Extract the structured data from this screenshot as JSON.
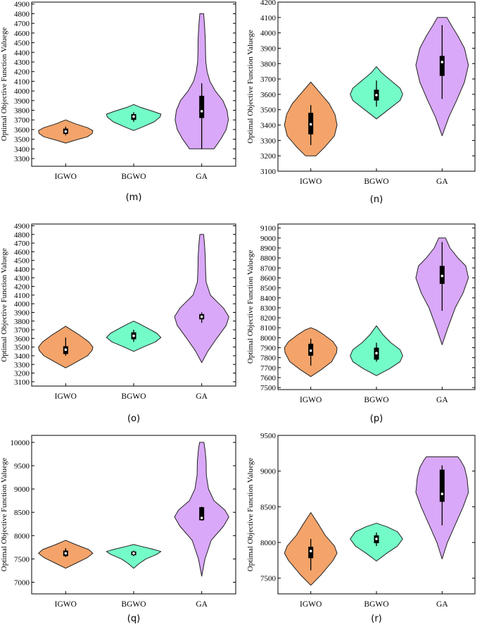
{
  "chart_data": [
    {
      "type": "violin",
      "panel": "(m)",
      "ylabel": "Optimal Objective Function Valuege",
      "categories": [
        "IGWO",
        "BGWO",
        "GA"
      ],
      "ylim": [
        3220,
        4920
      ],
      "yticks": [
        3300,
        3400,
        3500,
        3600,
        3700,
        3800,
        3900,
        4000,
        4100,
        4200,
        4300,
        4400,
        4500,
        4600,
        4700,
        4800,
        4900
      ],
      "violins": [
        {
          "name": "IGWO",
          "color": "#f4a46a",
          "profile": [
            [
              3460,
              0
            ],
            [
              3490,
              0.35
            ],
            [
              3525,
              0.8
            ],
            [
              3560,
              0.98
            ],
            [
              3590,
              1.0
            ],
            [
              3620,
              0.8
            ],
            [
              3660,
              0.35
            ],
            [
              3700,
              0
            ]
          ],
          "box": {
            "q1": 3555,
            "q3": 3610,
            "median": 3580,
            "wlo": 3540,
            "whi": 3630
          }
        },
        {
          "name": "BGWO",
          "color": "#74fcc8",
          "profile": [
            [
              3590,
              0
            ],
            [
              3630,
              0.35
            ],
            [
              3680,
              0.75
            ],
            [
              3730,
              0.97
            ],
            [
              3760,
              1.0
            ],
            [
              3790,
              0.7
            ],
            [
              3830,
              0.25
            ],
            [
              3860,
              0
            ]
          ],
          "box": {
            "q1": 3700,
            "q3": 3760,
            "median": 3735,
            "wlo": 3680,
            "whi": 3780
          }
        },
        {
          "name": "GA",
          "color": "#d9a8f8",
          "profile": [
            [
              3400,
              0.45
            ],
            [
              3500,
              0.7
            ],
            [
              3600,
              0.9
            ],
            [
              3700,
              0.98
            ],
            [
              3800,
              0.93
            ],
            [
              3900,
              0.78
            ],
            [
              4000,
              0.5
            ],
            [
              4100,
              0.3
            ],
            [
              4200,
              0.2
            ],
            [
              4300,
              0.15
            ],
            [
              4400,
              0.14
            ],
            [
              4550,
              0.13
            ],
            [
              4700,
              0.1
            ],
            [
              4800,
              0.07
            ]
          ],
          "box": {
            "q1": 3720,
            "q3": 3950,
            "median": 3790,
            "wlo": 3400,
            "whi": 4080
          }
        }
      ]
    },
    {
      "type": "violin",
      "panel": "(n)",
      "ylabel": "Optimal Objective Function Valuege",
      "categories": [
        "IGWO",
        "BGWO",
        "GA"
      ],
      "ylim": [
        3100,
        4200
      ],
      "yticks": [
        3100,
        3200,
        3300,
        3400,
        3500,
        3600,
        3700,
        3800,
        3900,
        4000,
        4100,
        4200
      ],
      "violins": [
        {
          "name": "IGWO",
          "color": "#f4a46a",
          "profile": [
            [
              3200,
              0.2
            ],
            [
              3260,
              0.55
            ],
            [
              3330,
              0.9
            ],
            [
              3400,
              1.0
            ],
            [
              3470,
              0.92
            ],
            [
              3540,
              0.7
            ],
            [
              3600,
              0.4
            ],
            [
              3650,
              0.15
            ],
            [
              3680,
              0
            ]
          ],
          "box": {
            "q1": 3340,
            "q3": 3480,
            "median": 3405,
            "wlo": 3270,
            "whi": 3530
          }
        },
        {
          "name": "BGWO",
          "color": "#74fcc8",
          "profile": [
            [
              3440,
              0
            ],
            [
              3500,
              0.45
            ],
            [
              3560,
              0.9
            ],
            [
              3600,
              1.0
            ],
            [
              3640,
              0.9
            ],
            [
              3690,
              0.55
            ],
            [
              3740,
              0.2
            ],
            [
              3780,
              0
            ]
          ],
          "box": {
            "q1": 3560,
            "q3": 3630,
            "median": 3595,
            "wlo": 3520,
            "whi": 3690
          }
        },
        {
          "name": "GA",
          "color": "#d9a8f8",
          "profile": [
            [
              3330,
              0
            ],
            [
              3450,
              0.25
            ],
            [
              3560,
              0.55
            ],
            [
              3680,
              0.85
            ],
            [
              3790,
              1.0
            ],
            [
              3900,
              0.85
            ],
            [
              3980,
              0.6
            ],
            [
              4050,
              0.35
            ],
            [
              4100,
              0.18
            ]
          ],
          "box": {
            "q1": 3720,
            "q3": 3850,
            "median": 3810,
            "wlo": 3570,
            "whi": 4050
          }
        }
      ]
    },
    {
      "type": "violin",
      "panel": "(o)",
      "ylabel": "Optimal Objective Function Valuege",
      "categories": [
        "IGWO",
        "BGWO",
        "GA"
      ],
      "ylim": [
        3050,
        4920
      ],
      "yticks": [
        3100,
        3200,
        3300,
        3400,
        3500,
        3600,
        3700,
        3800,
        3900,
        4000,
        4100,
        4200,
        4300,
        4400,
        4500,
        4600,
        4700,
        4800,
        4900
      ],
      "violins": [
        {
          "name": "IGWO",
          "color": "#f4a46a",
          "profile": [
            [
              3260,
              0
            ],
            [
              3320,
              0.35
            ],
            [
              3400,
              0.8
            ],
            [
              3460,
              0.97
            ],
            [
              3500,
              1.0
            ],
            [
              3560,
              0.85
            ],
            [
              3640,
              0.5
            ],
            [
              3700,
              0.2
            ],
            [
              3740,
              0
            ]
          ],
          "box": {
            "q1": 3420,
            "q3": 3510,
            "median": 3470,
            "wlo": 3400,
            "whi": 3610
          }
        },
        {
          "name": "BGWO",
          "color": "#74fcc8",
          "profile": [
            [
              3450,
              0
            ],
            [
              3500,
              0.35
            ],
            [
              3560,
              0.8
            ],
            [
              3610,
              1.0
            ],
            [
              3660,
              0.85
            ],
            [
              3720,
              0.5
            ],
            [
              3770,
              0.2
            ],
            [
              3800,
              0
            ]
          ],
          "box": {
            "q1": 3590,
            "q3": 3670,
            "median": 3630,
            "wlo": 3560,
            "whi": 3700
          }
        },
        {
          "name": "GA",
          "color": "#d9a8f8",
          "profile": [
            [
              3320,
              0
            ],
            [
              3450,
              0.22
            ],
            [
              3600,
              0.55
            ],
            [
              3750,
              0.9
            ],
            [
              3850,
              1.0
            ],
            [
              3950,
              0.8
            ],
            [
              4100,
              0.32
            ],
            [
              4250,
              0.16
            ],
            [
              4400,
              0.14
            ],
            [
              4550,
              0.13
            ],
            [
              4700,
              0.1
            ],
            [
              4800,
              0.07
            ]
          ],
          "box": {
            "q1": 3820,
            "q3": 3880,
            "median": 3850,
            "wlo": 3780,
            "whi": 3900
          }
        }
      ]
    },
    {
      "type": "violin",
      "panel": "(p)",
      "ylabel": "Optimal Objective Function Valuege",
      "categories": [
        "IGWO",
        "BGWO",
        "GA"
      ],
      "ylim": [
        7480,
        9140
      ],
      "yticks": [
        7500,
        7600,
        7700,
        7800,
        7900,
        8000,
        8100,
        8200,
        8300,
        8400,
        8500,
        8600,
        8700,
        8800,
        8900,
        9000,
        9100
      ],
      "violins": [
        {
          "name": "IGWO",
          "color": "#f4a46a",
          "profile": [
            [
              7610,
              0
            ],
            [
              7680,
              0.4
            ],
            [
              7760,
              0.8
            ],
            [
              7850,
              0.98
            ],
            [
              7900,
              1.0
            ],
            [
              7960,
              0.85
            ],
            [
              8030,
              0.5
            ],
            [
              8080,
              0.2
            ],
            [
              8100,
              0
            ]
          ],
          "box": {
            "q1": 7820,
            "q3": 7940,
            "median": 7870,
            "wlo": 7720,
            "whi": 7990
          }
        },
        {
          "name": "BGWO",
          "color": "#74fcc8",
          "profile": [
            [
              7620,
              0
            ],
            [
              7690,
              0.5
            ],
            [
              7760,
              0.9
            ],
            [
              7820,
              1.0
            ],
            [
              7880,
              0.9
            ],
            [
              7950,
              0.55
            ],
            [
              8030,
              0.25
            ],
            [
              8090,
              0.08
            ],
            [
              8120,
              0
            ]
          ],
          "box": {
            "q1": 7780,
            "q3": 7900,
            "median": 7845,
            "wlo": 7760,
            "whi": 7950
          }
        },
        {
          "name": "GA",
          "color": "#d9a8f8",
          "profile": [
            [
              7930,
              0
            ],
            [
              8100,
              0.22
            ],
            [
              8300,
              0.5
            ],
            [
              8450,
              0.8
            ],
            [
              8600,
              1.0
            ],
            [
              8720,
              0.9
            ],
            [
              8800,
              0.6
            ],
            [
              8900,
              0.3
            ],
            [
              9000,
              0.13
            ]
          ],
          "box": {
            "q1": 8540,
            "q3": 8720,
            "median": 8620,
            "wlo": 8270,
            "whi": 8960
          }
        }
      ]
    },
    {
      "type": "violin",
      "panel": "(q)",
      "ylabel": "Optimal Objective Function Valuege",
      "categories": [
        "IGWO",
        "BGWO",
        "GA"
      ],
      "ylim": [
        6750,
        10150
      ],
      "yticks": [
        7000,
        7500,
        8000,
        8500,
        9000,
        9500,
        10000
      ],
      "violins": [
        {
          "name": "IGWO",
          "color": "#f4a46a",
          "profile": [
            [
              7300,
              0
            ],
            [
              7400,
              0.35
            ],
            [
              7530,
              0.8
            ],
            [
              7620,
              1.0
            ],
            [
              7700,
              0.85
            ],
            [
              7800,
              0.4
            ],
            [
              7900,
              0
            ]
          ],
          "box": {
            "q1": 7560,
            "q3": 7680,
            "median": 7620,
            "wlo": 7540,
            "whi": 7730
          }
        },
        {
          "name": "BGWO",
          "color": "#74fcc8",
          "profile": [
            [
              7300,
              0
            ],
            [
              7400,
              0.2
            ],
            [
              7500,
              0.45
            ],
            [
              7600,
              0.85
            ],
            [
              7660,
              1.0
            ],
            [
              7710,
              0.7
            ],
            [
              7780,
              0.2
            ],
            [
              7810,
              0
            ]
          ],
          "box": {
            "q1": 7580,
            "q3": 7660,
            "median": 7620,
            "wlo": 7560,
            "whi": 7680
          }
        },
        {
          "name": "GA",
          "color": "#d9a8f8",
          "profile": [
            [
              7130,
              0
            ],
            [
              7500,
              0.12
            ],
            [
              7900,
              0.35
            ],
            [
              8200,
              0.8
            ],
            [
              8400,
              1.0
            ],
            [
              8550,
              0.85
            ],
            [
              8750,
              0.45
            ],
            [
              9000,
              0.25
            ],
            [
              9300,
              0.17
            ],
            [
              9600,
              0.16
            ],
            [
              9850,
              0.12
            ],
            [
              10000,
              0.08
            ]
          ],
          "box": {
            "q1": 8330,
            "q3": 8610,
            "median": 8380,
            "wlo": 8320,
            "whi": 8620
          }
        }
      ]
    },
    {
      "type": "violin",
      "panel": "(r)",
      "ylabel": "Optimal Objective Function Valuege",
      "categories": [
        "IGWO",
        "BGWO",
        "GA"
      ],
      "ylim": [
        7280,
        9500
      ],
      "yticks": [
        7500,
        8000,
        8500,
        9000,
        9500
      ],
      "violins": [
        {
          "name": "IGWO",
          "color": "#f4a46a",
          "profile": [
            [
              7400,
              0
            ],
            [
              7550,
              0.4
            ],
            [
              7750,
              0.85
            ],
            [
              7850,
              1.0
            ],
            [
              7950,
              0.9
            ],
            [
              8100,
              0.55
            ],
            [
              8250,
              0.3
            ],
            [
              8420,
              0
            ]
          ],
          "box": {
            "q1": 7780,
            "q3": 7940,
            "median": 7880,
            "wlo": 7610,
            "whi": 8050
          }
        },
        {
          "name": "BGWO",
          "color": "#74fcc8",
          "profile": [
            [
              7740,
              0
            ],
            [
              7850,
              0.4
            ],
            [
              7950,
              0.8
            ],
            [
              8050,
              1.0
            ],
            [
              8150,
              0.8
            ],
            [
              8220,
              0.4
            ],
            [
              8270,
              0
            ]
          ],
          "box": {
            "q1": 7990,
            "q3": 8100,
            "median": 8050,
            "wlo": 7950,
            "whi": 8140
          }
        },
        {
          "name": "GA",
          "color": "#d9a8f8",
          "profile": [
            [
              7770,
              0
            ],
            [
              8000,
              0.2
            ],
            [
              8250,
              0.5
            ],
            [
              8500,
              0.8
            ],
            [
              8700,
              1.0
            ],
            [
              8900,
              0.95
            ],
            [
              9050,
              0.85
            ],
            [
              9150,
              0.7
            ],
            [
              9200,
              0.6
            ]
          ],
          "box": {
            "q1": 8570,
            "q3": 9020,
            "median": 8680,
            "wlo": 8240,
            "whi": 9080
          }
        }
      ]
    }
  ]
}
